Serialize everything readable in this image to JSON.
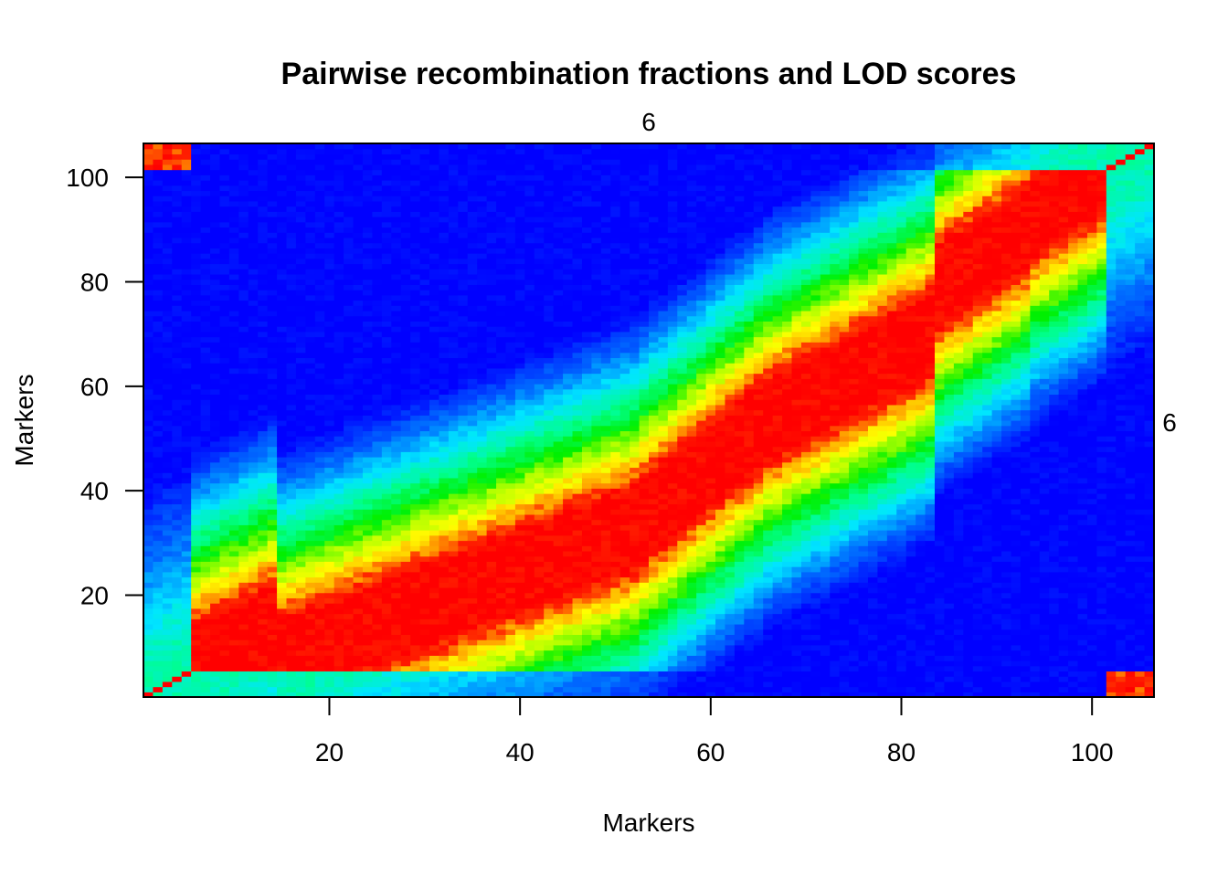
{
  "chart_data": {
    "type": "heatmap",
    "title": "Pairwise recombination fractions and LOD scores",
    "xlabel": "Markers",
    "ylabel": "Markers",
    "top_group_label": "6",
    "right_group_label": "6",
    "n_markers": 106,
    "xlim": [
      0.5,
      106.5
    ],
    "ylim": [
      0.5,
      106.5
    ],
    "xticks": [
      20,
      40,
      60,
      80,
      100
    ],
    "yticks": [
      20,
      40,
      60,
      80,
      100
    ],
    "grid": false,
    "colorscale": "rainbow (blue = low, red = high)",
    "colors": [
      "#0000ff",
      "#0055ff",
      "#00aaff",
      "#00ffff",
      "#00ff80",
      "#00ff00",
      "#80ff00",
      "#ffff00",
      "#ffaa00",
      "#ff5500",
      "#ff0000"
    ],
    "description_note": "",
    "band_segments": [
      {
        "x": [
          1,
          5
        ],
        "y": [
          1,
          5
        ]
      },
      {
        "x": [
          5,
          14
        ],
        "y": [
          6,
          14
        ]
      },
      {
        "x": [
          14,
          52
        ],
        "y": [
          7,
          33
        ]
      },
      {
        "x": [
          38,
          65
        ],
        "y": [
          13,
          52
        ]
      },
      {
        "x": [
          52,
          83
        ],
        "y": [
          40,
          70
        ]
      },
      {
        "x": [
          68,
          93
        ],
        "y": [
          60,
          90
        ]
      },
      {
        "x": [
          88,
          102
        ],
        "y": [
          86,
          102
        ]
      },
      {
        "x": [
          102,
          106
        ],
        "y": [
          102,
          106
        ]
      }
    ],
    "corner_blocks": [
      {
        "x": [
          1,
          5
        ],
        "y": [
          102,
          106
        ]
      },
      {
        "x": [
          102,
          106
        ],
        "y": [
          1,
          5
        ]
      }
    ]
  }
}
